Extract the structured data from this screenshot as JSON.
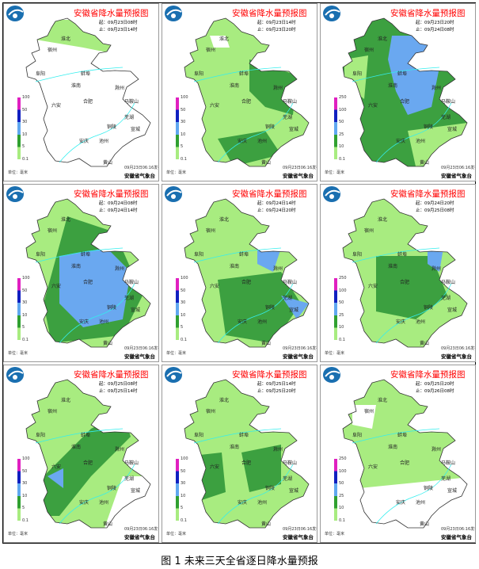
{
  "figure_caption": "图 1  未来三天全省逐日降水量预报",
  "panel_title": "安徽省降水量预报图",
  "unit_label": "单位：毫米",
  "publish_time": "09月23日06:16发布",
  "agency": "安徽省气象台",
  "legend_6h": [
    "100",
    "50",
    "30",
    "10",
    "5",
    "0.1"
  ],
  "legend_12h": [
    "250",
    "100",
    "50",
    "25",
    "10",
    "0.1"
  ],
  "legend_colors": [
    "#e020c0",
    "#1020c0",
    "#60a8f0",
    "#30a030",
    "#a8ec80"
  ],
  "cities": [
    "淮北",
    "宿州",
    "阜阳",
    "蚌埠",
    "淮南",
    "滁州",
    "六安",
    "合肥",
    "马鞍山",
    "芜湖",
    "铜陵",
    "宣城",
    "安庆",
    "池州",
    "黄山"
  ],
  "panels": [
    {
      "start": "起：09月23日08时",
      "end": "止：09月23日14时",
      "legend": "6h"
    },
    {
      "start": "起：09月23日14时",
      "end": "止：09月23日20时",
      "legend": "6h"
    },
    {
      "start": "起：09月23日20时",
      "end": "止：09月24日08时",
      "legend": "12h"
    },
    {
      "start": "起：09月24日08时",
      "end": "止：09月24日14时",
      "legend": "6h"
    },
    {
      "start": "起：09月24日14时",
      "end": "止：09月24日20时",
      "legend": "6h"
    },
    {
      "start": "起：09月24日20时",
      "end": "止：09月25日08时",
      "legend": "12h"
    },
    {
      "start": "起：09月25日08时",
      "end": "止：09月25日14时",
      "legend": "6h"
    },
    {
      "start": "起：09月25日14时",
      "end": "止：09月25日20时",
      "legend": "6h"
    },
    {
      "start": "起：09月25日20时",
      "end": "止：09月26日08时",
      "legend": "12h"
    }
  ]
}
